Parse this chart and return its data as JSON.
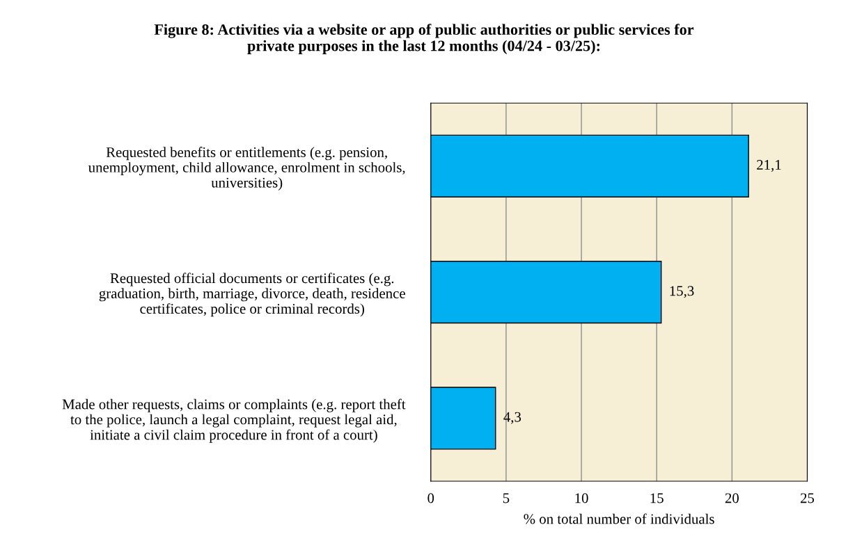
{
  "chart_data": {
    "type": "bar",
    "orientation": "horizontal",
    "title": "Figure 8: Activities via a website or app of public authorities or public services for\nprivate purposes in the last 12 months (04/24 - 03/25):",
    "xlabel": "% on total number of individuals",
    "categories": [
      "Requested benefits or entitlements (e.g. pension,\nunemployment, child allowance, enrolment in schools,\nuniversities)",
      "Requested official documents or certificates (e.g.\ngraduation, birth, marriage, divorce, death, residence\ncertificates, police or criminal records)",
      "Made other requests, claims or complaints (e.g. report theft\nto the police, launch a legal complaint, request legal aid,\ninitiate a civil claim procedure in front of a court)"
    ],
    "values": [
      21.1,
      15.3,
      4.3
    ],
    "value_labels": [
      "21,1",
      "15,3",
      "4,3"
    ],
    "color": "#00b0f0",
    "xlim": [
      0,
      25
    ],
    "xticks": [
      0,
      5,
      10,
      15,
      20,
      25
    ],
    "grid": "x"
  }
}
